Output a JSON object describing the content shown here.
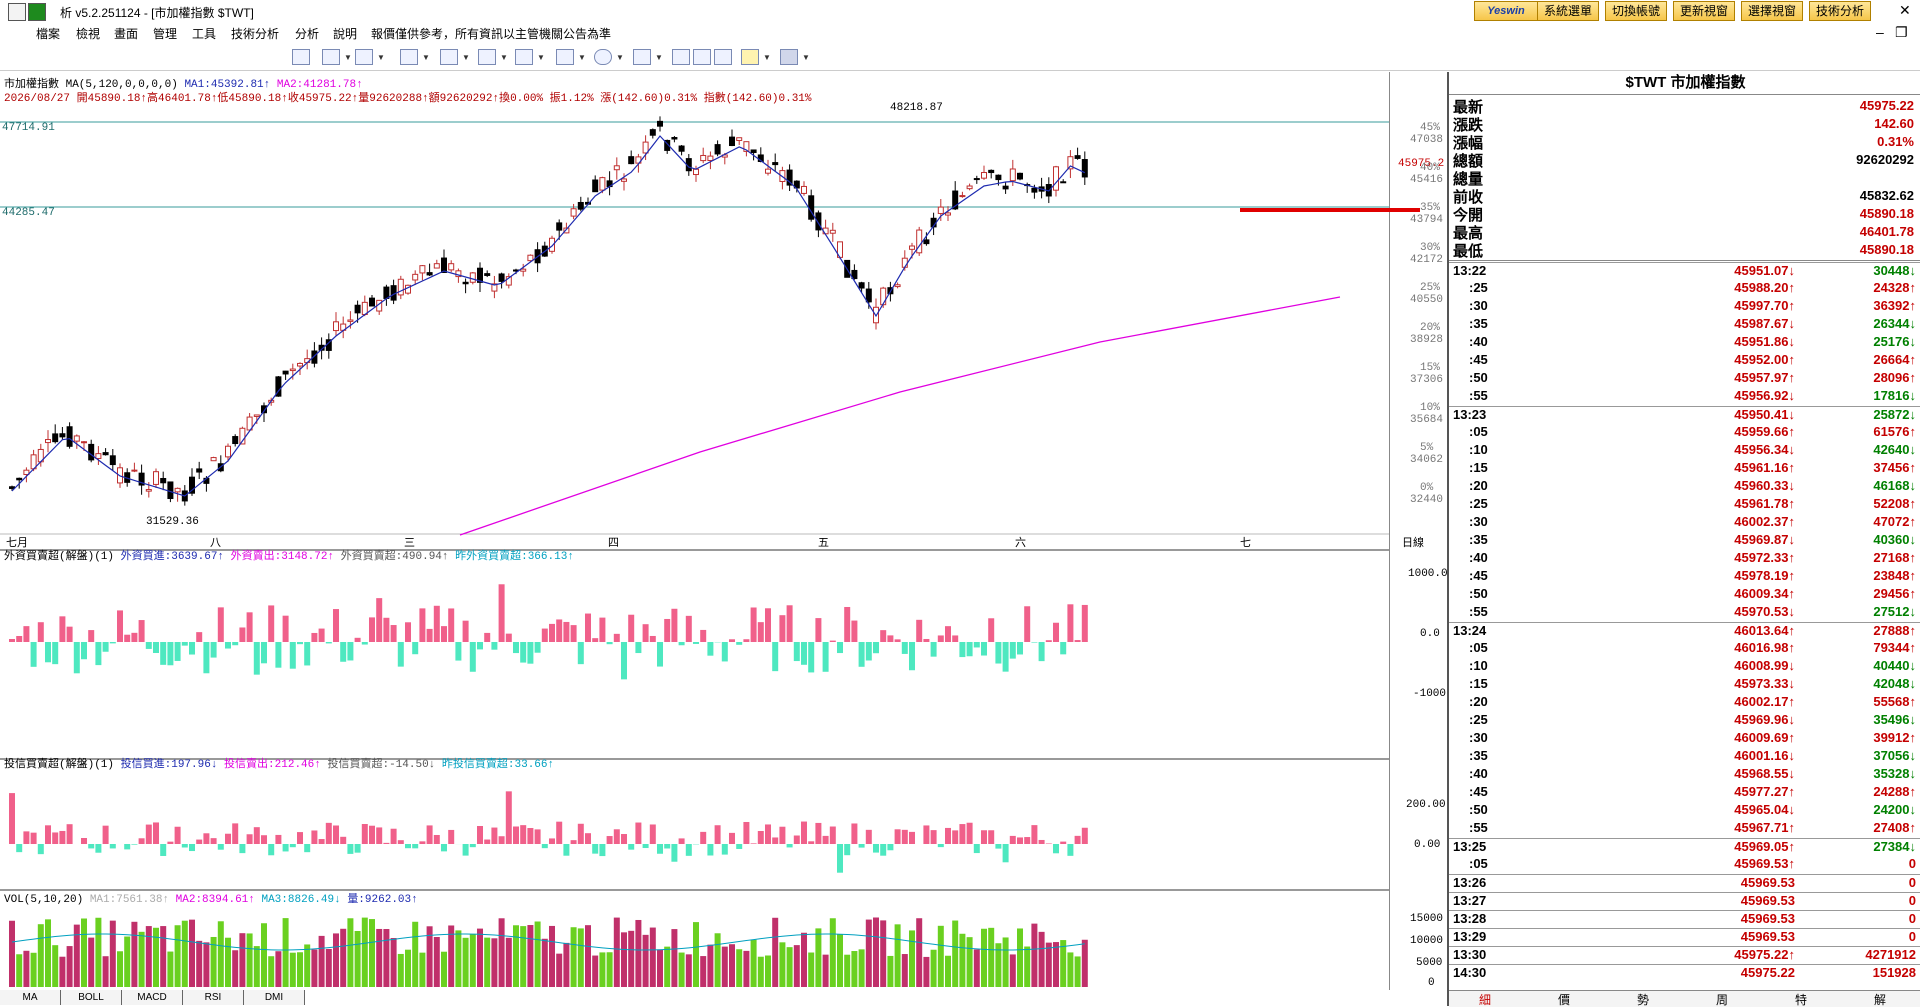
{
  "window": {
    "title": "析 v5.2.251124 - [市加權指數 $TWT]",
    "top_buttons": [
      "系統選單",
      "切換帳號",
      "更新視窗",
      "選擇視窗",
      "技術分析"
    ],
    "brand": "Yeswin",
    "close_glyph": "✕",
    "min_glyph": "–",
    "restore_glyph": "❐"
  },
  "menu": [
    "檔案",
    "檢視",
    "畫面",
    "管理",
    "工具",
    "技術分析",
    "分析",
    "說明",
    "報價僅供參考，所有資訊以主管機關公告為準"
  ],
  "chart": {
    "header1": "市加權指數 MA(5,120,0,0,0,0)",
    "ma1": "MA1:45392.81↑",
    "ma2": "MA2:41281.78↑",
    "header2": "2026/08/27 開45890.18↑高46401.78↑低45890.18↑收45975.22↑量92620288↑額92620292↑換0.00% 振1.12% 漲(142.60)0.31% 指數(142.60)0.31%",
    "line_label_1": "47714.91",
    "line_label_2": "44285.47",
    "high_label": "48218.87",
    "low_label": "31529.36",
    "last_tag": "45975.2",
    "period_label": "日線",
    "month_labels": [
      "七月",
      "八",
      "三",
      "四",
      "五",
      "六",
      "七"
    ],
    "price_axis": [
      {
        "v": "47038",
        "p": "45%"
      },
      {
        "v": "45416",
        "p": "40%"
      },
      {
        "v": "43794",
        "p": "35%"
      },
      {
        "v": "42172",
        "p": "30%"
      },
      {
        "v": "40550",
        "p": "25%"
      },
      {
        "v": "38928",
        "p": "20%"
      },
      {
        "v": "37306",
        "p": "15%"
      },
      {
        "v": "35684",
        "p": "10%"
      },
      {
        "v": "34062",
        "p": "5%"
      },
      {
        "v": "32440",
        "p": "0%"
      }
    ]
  },
  "foreign": {
    "label": "外資買賣超(解盤)(1)",
    "buy": "外資買進:3639.67↑",
    "sell": "外資賣出:3148.72↑",
    "net": "外資買賣超:490.94↑",
    "prev": "昨外資買賣超:366.13↑",
    "axis": [
      "1000.0",
      "0.0",
      "-1000"
    ]
  },
  "trust": {
    "label": "投信買賣超(解盤)(1)",
    "buy": "投信買進:197.96↓",
    "sell": "投信賣出:212.46↑",
    "net": "投信買賣超:-14.50↓",
    "prev": "昨投信買賣超:33.66↑",
    "axis": [
      "200.00",
      "0.00"
    ]
  },
  "volume": {
    "label": "VOL(5,10,20)",
    "ma1": "MA1:7561.38↑",
    "ma2": "MA2:8394.61↑",
    "ma3": "MA3:8826.49↓",
    "qty": "量:9262.03↑",
    "axis": [
      "15000",
      "10000",
      "5000",
      "0"
    ]
  },
  "bottom_tabs": [
    "MA",
    "BOLL",
    "MACD",
    "RSI",
    "DMI"
  ],
  "quote": {
    "header": "$TWT 市加權指數",
    "rows": [
      {
        "label": "最新",
        "value": "45975.22",
        "color": "red"
      },
      {
        "label": "漲跌",
        "value": "142.60",
        "color": "red"
      },
      {
        "label": "漲幅",
        "value": "0.31%",
        "color": "red"
      },
      {
        "label": "總額",
        "value": "92620292",
        "color": "black"
      },
      {
        "label": "總量",
        "value": "",
        "color": "black"
      },
      {
        "label": "前收",
        "value": "45832.62",
        "color": "black"
      },
      {
        "label": "今開",
        "value": "45890.18",
        "color": "red"
      },
      {
        "label": "最高",
        "value": "46401.78",
        "color": "red"
      },
      {
        "label": "最低",
        "value": "45890.18",
        "color": "red"
      }
    ],
    "ticks": [
      {
        "t": "13:22",
        "p": "45951.07↓",
        "v": "30448↓",
        "c": "red",
        "vc": "green",
        "b": true
      },
      {
        "t": ":25",
        "p": "45988.20↑",
        "v": "24328↑",
        "c": "red",
        "vc": "red"
      },
      {
        "t": ":30",
        "p": "45997.70↑",
        "v": "36392↑",
        "c": "red",
        "vc": "red"
      },
      {
        "t": ":35",
        "p": "45987.67↓",
        "v": "26344↓",
        "c": "red",
        "vc": "green"
      },
      {
        "t": ":40",
        "p": "45951.86↓",
        "v": "25176↓",
        "c": "red",
        "vc": "green"
      },
      {
        "t": ":45",
        "p": "45952.00↑",
        "v": "26664↑",
        "c": "red",
        "vc": "red"
      },
      {
        "t": ":50",
        "p": "45957.97↑",
        "v": "28096↑",
        "c": "red",
        "vc": "red"
      },
      {
        "t": ":55",
        "p": "45956.92↓",
        "v": "17816↓",
        "c": "red",
        "vc": "green"
      },
      {
        "t": "13:23",
        "p": "45950.41↓",
        "v": "25872↓",
        "c": "red",
        "vc": "green",
        "b": true
      },
      {
        "t": ":05",
        "p": "45959.66↑",
        "v": "61576↑",
        "c": "red",
        "vc": "red"
      },
      {
        "t": ":10",
        "p": "45956.34↓",
        "v": "42640↓",
        "c": "red",
        "vc": "green"
      },
      {
        "t": ":15",
        "p": "45961.16↑",
        "v": "37456↑",
        "c": "red",
        "vc": "red"
      },
      {
        "t": ":20",
        "p": "45960.33↓",
        "v": "46168↓",
        "c": "red",
        "vc": "green"
      },
      {
        "t": ":25",
        "p": "45961.78↑",
        "v": "52208↑",
        "c": "red",
        "vc": "red"
      },
      {
        "t": ":30",
        "p": "46002.37↑",
        "v": "47072↑",
        "c": "red",
        "vc": "red"
      },
      {
        "t": ":35",
        "p": "45969.87↓",
        "v": "40360↓",
        "c": "red",
        "vc": "green"
      },
      {
        "t": ":40",
        "p": "45972.33↑",
        "v": "27168↑",
        "c": "red",
        "vc": "red"
      },
      {
        "t": ":45",
        "p": "45978.19↑",
        "v": "23848↑",
        "c": "red",
        "vc": "red"
      },
      {
        "t": ":50",
        "p": "46009.34↑",
        "v": "29456↑",
        "c": "red",
        "vc": "red"
      },
      {
        "t": ":55",
        "p": "45970.53↓",
        "v": "27512↓",
        "c": "red",
        "vc": "green"
      },
      {
        "t": "13:24",
        "p": "46013.64↑",
        "v": "27888↑",
        "c": "red",
        "vc": "red",
        "b": true
      },
      {
        "t": ":05",
        "p": "46016.98↑",
        "v": "79344↑",
        "c": "red",
        "vc": "red"
      },
      {
        "t": ":10",
        "p": "46008.99↓",
        "v": "40440↓",
        "c": "red",
        "vc": "green"
      },
      {
        "t": ":15",
        "p": "45973.33↓",
        "v": "42048↓",
        "c": "red",
        "vc": "green"
      },
      {
        "t": ":20",
        "p": "46002.17↑",
        "v": "55568↑",
        "c": "red",
        "vc": "red"
      },
      {
        "t": ":25",
        "p": "45969.96↓",
        "v": "35496↓",
        "c": "red",
        "vc": "green"
      },
      {
        "t": ":30",
        "p": "46009.69↑",
        "v": "39912↑",
        "c": "red",
        "vc": "red"
      },
      {
        "t": ":35",
        "p": "46001.16↓",
        "v": "37056↓",
        "c": "red",
        "vc": "green"
      },
      {
        "t": ":40",
        "p": "45968.55↓",
        "v": "35328↓",
        "c": "red",
        "vc": "green"
      },
      {
        "t": ":45",
        "p": "45977.27↑",
        "v": "24288↑",
        "c": "red",
        "vc": "red"
      },
      {
        "t": ":50",
        "p": "45965.04↓",
        "v": "24200↓",
        "c": "red",
        "vc": "green"
      },
      {
        "t": ":55",
        "p": "45967.71↑",
        "v": "27408↑",
        "c": "red",
        "vc": "red"
      },
      {
        "t": "13:25",
        "p": "45969.05↑",
        "v": "27384↓",
        "c": "red",
        "vc": "green",
        "b": true
      },
      {
        "t": ":05",
        "p": "45969.53↑",
        "v": "0",
        "c": "red",
        "vc": "red"
      },
      {
        "t": "13:26",
        "p": "45969.53",
        "v": "0",
        "c": "red",
        "vc": "red",
        "b": true
      },
      {
        "t": "13:27",
        "p": "45969.53",
        "v": "0",
        "c": "red",
        "vc": "red",
        "b": true
      },
      {
        "t": "13:28",
        "p": "45969.53",
        "v": "0",
        "c": "red",
        "vc": "red",
        "b": true
      },
      {
        "t": "13:29",
        "p": "45969.53",
        "v": "0",
        "c": "red",
        "vc": "red",
        "b": true
      },
      {
        "t": "13:30",
        "p": "45975.22↑",
        "v": "4271912",
        "c": "red",
        "vc": "red",
        "b": true
      },
      {
        "t": "14:30",
        "p": "45975.22",
        "v": "151928",
        "c": "red",
        "vc": "red",
        "b": true
      }
    ],
    "tabs": [
      "細",
      "價",
      "勢",
      "周",
      "特",
      "解"
    ]
  },
  "colors": {
    "up": "#c40000",
    "down": "#008000",
    "ma1": "#1e2bb0",
    "ma2": "#e000e0",
    "pink": "#f0608a",
    "mint": "#4ee8c0",
    "hline": "#3a9b9b"
  }
}
